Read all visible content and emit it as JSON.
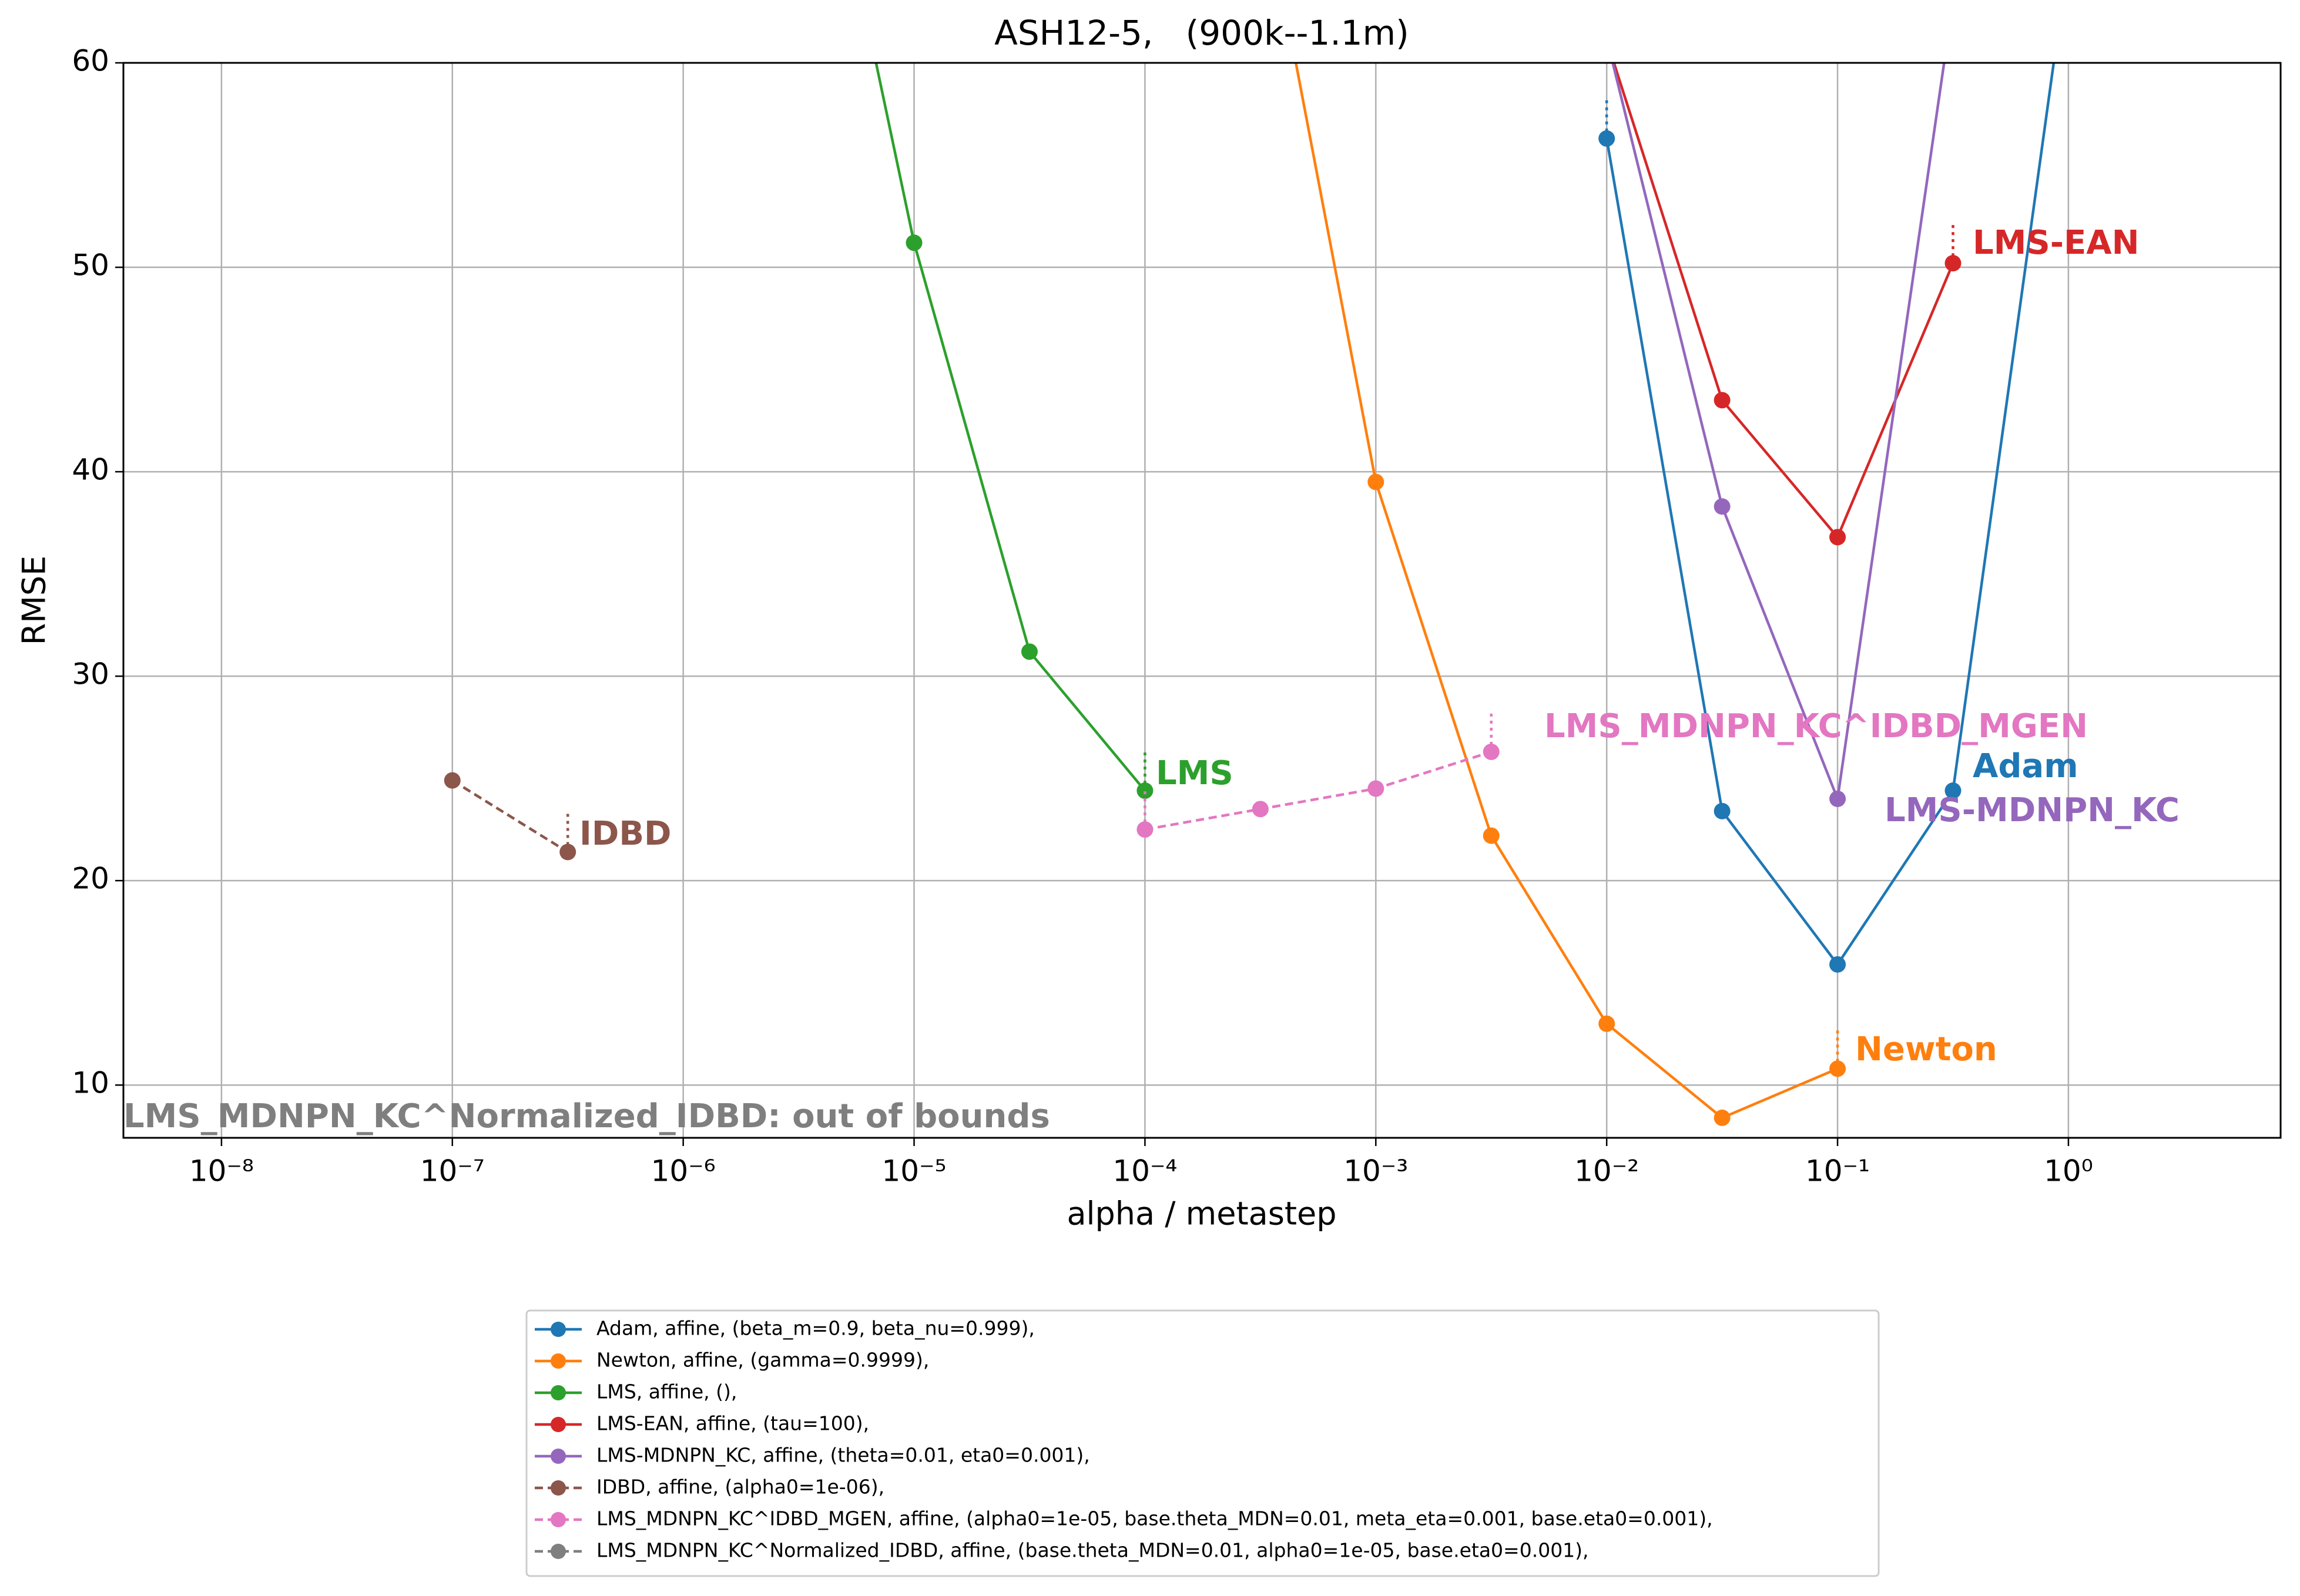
{
  "chart_data": {
    "type": "line",
    "title": "ASH12-5,   (900k--1.1m)",
    "x_label": "alpha / metastep",
    "y_label": "RMSE",
    "xscale": "log",
    "xlim": [
      3.76e-09,
      8.3
    ],
    "ylim": [
      7.42,
      60
    ],
    "xticks": [
      {
        "value": 1e-08,
        "label": "10⁻⁸"
      },
      {
        "value": 1e-07,
        "label": "10⁻⁷"
      },
      {
        "value": 1e-06,
        "label": "10⁻⁶"
      },
      {
        "value": 1e-05,
        "label": "10⁻⁵"
      },
      {
        "value": 0.0001,
        "label": "10⁻⁴"
      },
      {
        "value": 0.001,
        "label": "10⁻³"
      },
      {
        "value": 0.01,
        "label": "10⁻²"
      },
      {
        "value": 0.1,
        "label": "10⁻¹"
      },
      {
        "value": 1,
        "label": "10⁰"
      }
    ],
    "yticks": [
      10,
      20,
      30,
      40,
      50,
      60
    ],
    "grid": true,
    "legend": "below",
    "series": [
      {
        "name": "Adam, affine, (beta_m=0.9, beta_nu=0.999),",
        "color": "#1f77b4",
        "linestyle": "solid",
        "x": [
          0.01,
          0.031623,
          0.1,
          0.31623,
          1
        ],
        "values": [
          56.3,
          23.4,
          15.9,
          24.4,
          65.2
        ],
        "errors": [
          2,
          null,
          null,
          null,
          null
        ]
      },
      {
        "name": "Newton, affine, (gamma=0.9999),",
        "color": "#ff7f0e",
        "linestyle": "solid",
        "x": [
          0.00031623,
          0.001,
          0.0031623,
          0.01,
          0.031623,
          0.1
        ],
        "values": [
          69.1,
          39.5,
          22.2,
          13.0,
          8.4,
          10.8
        ],
        "errors": [
          null,
          null,
          null,
          null,
          null,
          2
        ]
      },
      {
        "name": "LMS, affine, (),",
        "color": "#2ca02c",
        "linestyle": "solid",
        "x": [
          3.1623e-06,
          1e-05,
          3.1623e-05,
          0.0001
        ],
        "values": [
          77.9,
          51.2,
          31.2,
          24.4
        ],
        "errors": [
          null,
          null,
          null,
          2
        ]
      },
      {
        "name": "LMS-EAN, affine, (tau=100),",
        "color": "#d62728",
        "linestyle": "solid",
        "x": [
          0.01,
          0.031623,
          0.1,
          0.31623
        ],
        "values": [
          61.1,
          43.5,
          36.8,
          50.2
        ],
        "errors": [
          null,
          null,
          null,
          2
        ]
      },
      {
        "name": "LMS-MDNPN_KC, affine, (theta=0.01, eta0=0.001),",
        "color": "#9467bd",
        "linestyle": "solid",
        "x": [
          0.01,
          0.031623,
          0.1,
          0.31623
        ],
        "values": [
          61.2,
          38.3,
          24.0,
          63
        ],
        "errors": [
          null,
          null,
          null,
          null
        ]
      },
      {
        "name": "IDBD, affine, (alpha0=1e-06),",
        "color": "#8c564b",
        "linestyle": "dashed",
        "x": [
          1e-07,
          3.1623e-07
        ],
        "values": [
          24.9,
          21.4
        ],
        "errors": [
          null,
          2
        ]
      },
      {
        "name": "LMS_MDNPN_KC^IDBD_MGEN, affine, (alpha0=1e-05, base.theta_MDN=0.01, meta_eta=0.001, base.eta0=0.001),",
        "color": "#e377c2",
        "linestyle": "dashed",
        "x": [
          0.0001,
          0.00031623,
          0.001,
          0.0031623
        ],
        "values": [
          22.5,
          23.5,
          24.5,
          26.3
        ],
        "errors": [
          2,
          null,
          null,
          2
        ]
      },
      {
        "name": "LMS_MDNPN_KC^Normalized_IDBD, affine, (base.theta_MDN=0.01, alpha0=1e-05, base.eta0=0.001),",
        "color": "#7f7f7f",
        "linestyle": "dashed",
        "x": [],
        "values": [],
        "errors": []
      }
    ],
    "annotations": [
      {
        "text": "LMS-EAN",
        "color": "#d62728"
      },
      {
        "text": "Adam",
        "color": "#1f77b4"
      },
      {
        "text": "LMS-MDNPN_KC",
        "color": "#9467bd"
      },
      {
        "text": "Newton",
        "color": "#ff7f0e"
      },
      {
        "text": "LMS",
        "color": "#2ca02c"
      },
      {
        "text": "IDBD",
        "color": "#8c564b"
      },
      {
        "text": "LMS_MDNPN_KC^IDBD_MGEN",
        "color": "#e377c2"
      },
      {
        "text": "LMS_MDNPN_KC^Normalized_IDBD: out of bounds",
        "color": "#7f7f7f"
      }
    ]
  }
}
